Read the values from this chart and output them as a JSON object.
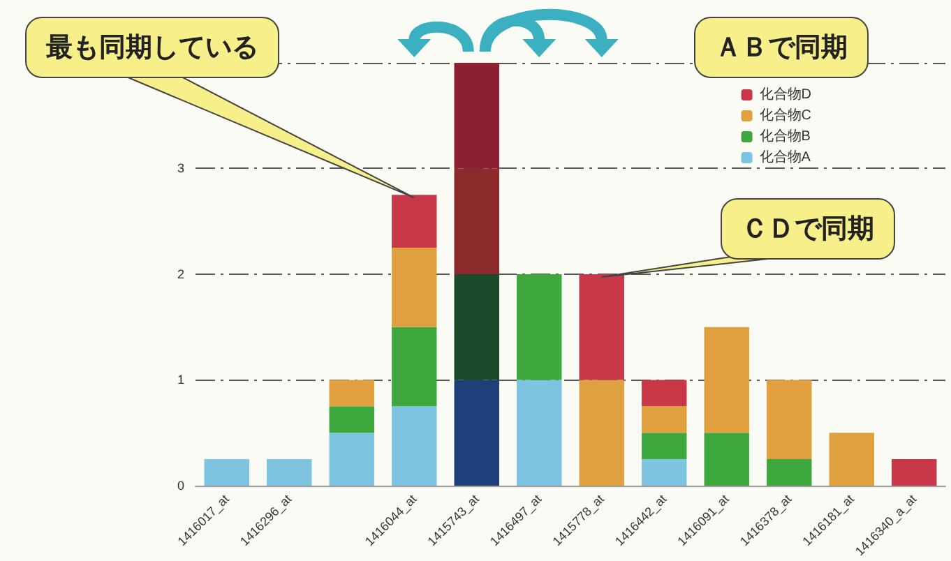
{
  "chart_data": {
    "type": "bar",
    "stacked": true,
    "categories": [
      "1416017_at",
      "1416296_at",
      null,
      "1416044_at",
      "1415743_at",
      "1416497_at",
      "1415778_at",
      "1416442_at",
      "1416091_at",
      "1416378_at",
      "1416181_at",
      "1416340_a_at"
    ],
    "series": [
      {
        "name": "化合物A",
        "color": "#7ec3e0",
        "colors": [
          "#7ec3e0",
          "#7ec3e0",
          "#7ec3e0",
          "#7ec3e0",
          "#1f3f7a",
          "#7ec3e0",
          "#7ec3e0",
          "#7ec3e0",
          "#7ec3e0",
          "#7ec3e0",
          "#7ec3e0",
          "#7ec3e0"
        ],
        "values": [
          0.25,
          0.25,
          0.5,
          0.75,
          1,
          1,
          0,
          0.25,
          0,
          0,
          0,
          0
        ]
      },
      {
        "name": "化合物B",
        "color": "#3ea83e",
        "colors": [
          "#3ea83e",
          "#3ea83e",
          "#3ea83e",
          "#3ea83e",
          "#1a4a2a",
          "#3ea83e",
          "#3ea83e",
          "#3ea83e",
          "#3ea83e",
          "#3ea83e",
          "#3ea83e",
          "#3ea83e"
        ],
        "values": [
          0,
          0,
          0.25,
          0.75,
          1,
          1,
          0,
          0.25,
          0.5,
          0.25,
          0,
          0
        ]
      },
      {
        "name": "化合物C",
        "color": "#e0a040",
        "colors": [
          "#e0a040",
          "#e0a040",
          "#e0a040",
          "#e0a040",
          "#8a2a2a",
          "#e0a040",
          "#e0a040",
          "#e0a040",
          "#e0a040",
          "#e0a040",
          "#e0a040",
          "#e0a040"
        ],
        "values": [
          0,
          0,
          0.25,
          0.75,
          1,
          0,
          1,
          0.25,
          1,
          0.75,
          0.5,
          0
        ]
      },
      {
        "name": "化合物D",
        "color": "#c83848",
        "colors": [
          "#c83848",
          "#c83848",
          "#c83848",
          "#c83848",
          "#8a2030",
          "#c83848",
          "#c83848",
          "#c83848",
          "#c83848",
          "#c83848",
          "#c83848",
          "#c83848"
        ],
        "values": [
          0,
          0,
          0,
          0.5,
          1,
          0,
          1,
          0.25,
          0,
          0,
          0,
          0.25
        ]
      }
    ],
    "ylim": [
      0,
      4
    ],
    "yticks": [
      0,
      1,
      2,
      3,
      {
        "value": 4,
        "label": null
      }
    ],
    "grid": "y",
    "legend": "top right",
    "annotations": [
      {
        "text": "最も同期している",
        "x": "1416044_at",
        "y": 2.75
      },
      "ＡＢで同期",
      {
        "text": "ＣＤで同期",
        "x": "1415778_at",
        "y": 2
      }
    ]
  }
}
